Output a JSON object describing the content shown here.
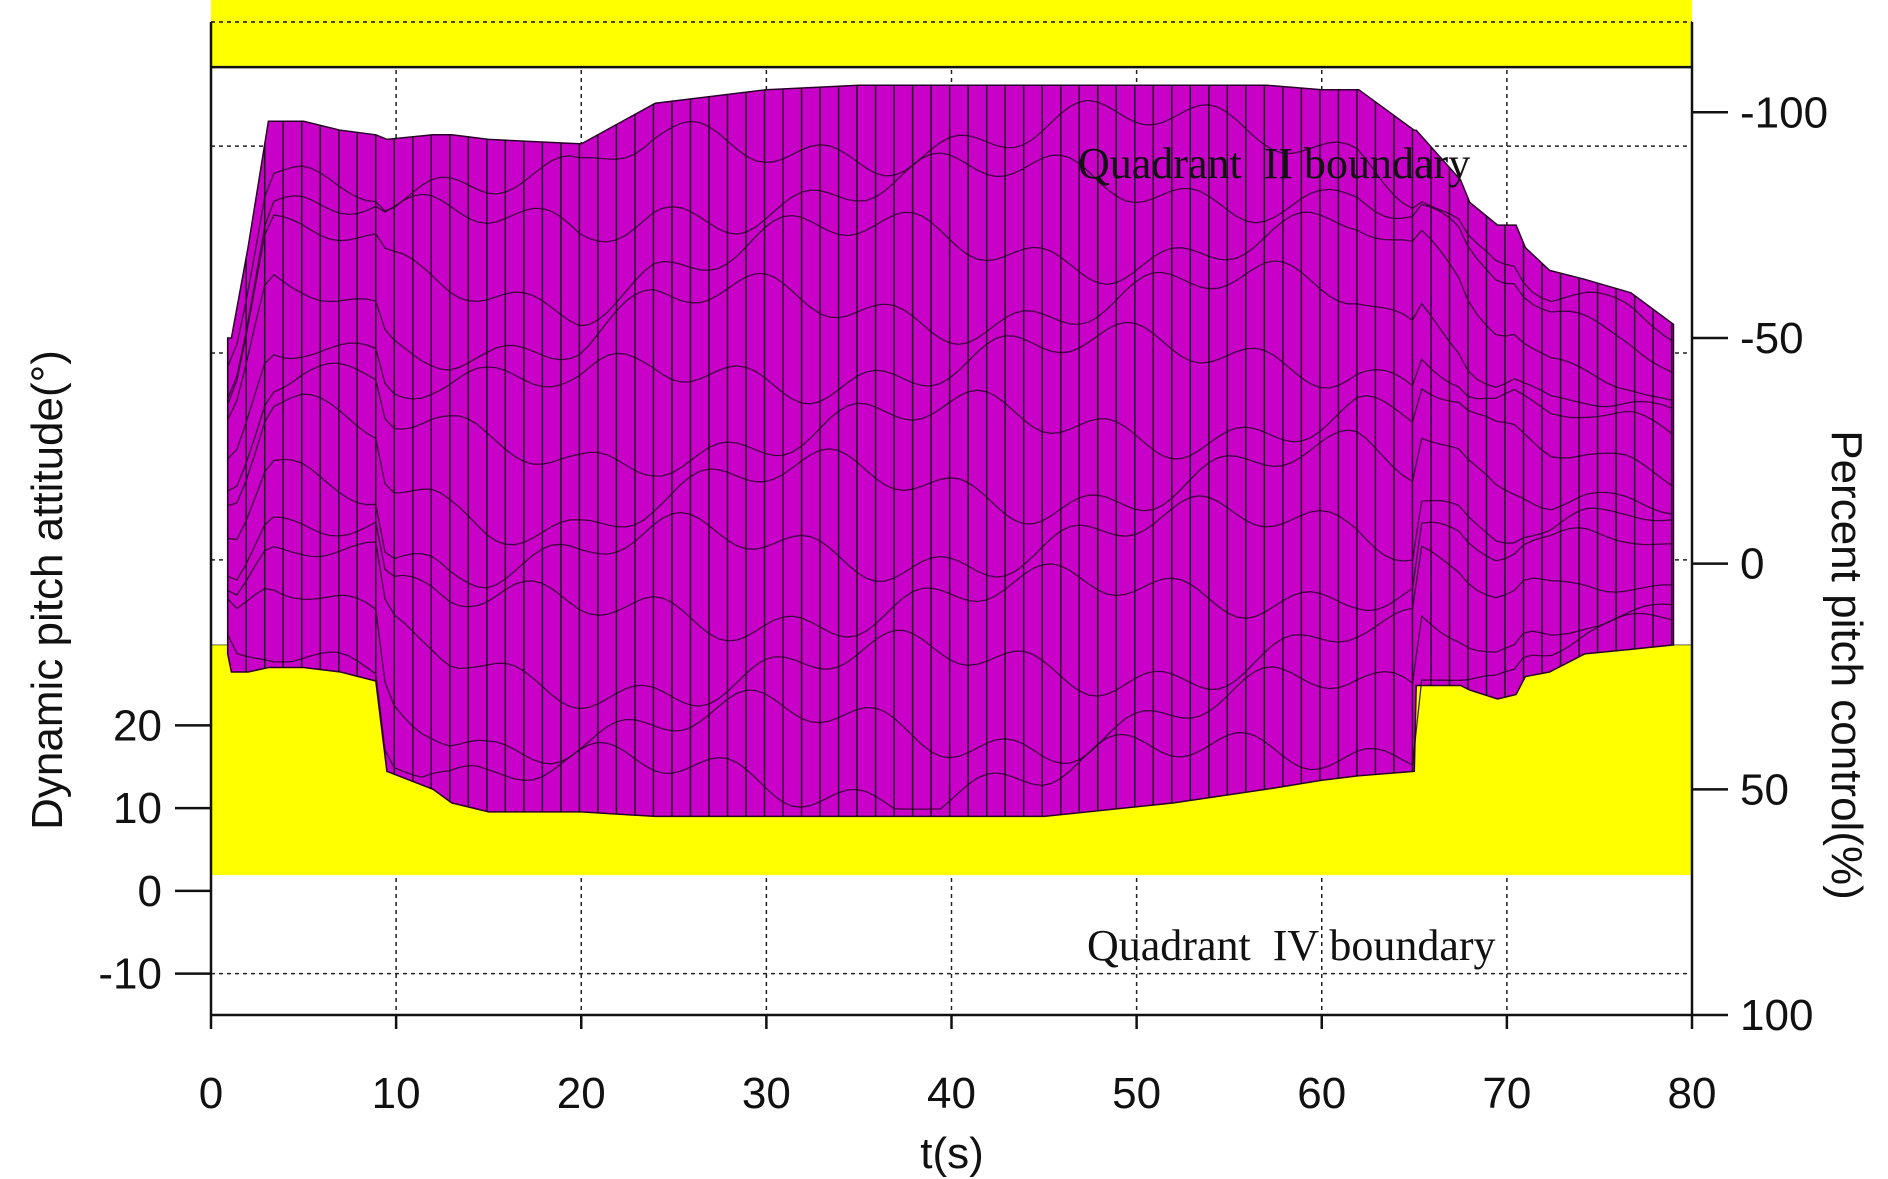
{
  "chart_data": {
    "type": "area",
    "xlabel": "t(s)",
    "ylabel_left": "Dynamic pitch attitude(°)",
    "ylabel_right": "Percent pitch control(%)",
    "xlim": [
      0,
      80
    ],
    "x_ticks": [
      0,
      10,
      20,
      30,
      40,
      50,
      60,
      70,
      80
    ],
    "y_left_ticks": [
      20,
      10,
      0,
      -10
    ],
    "y_left_range": [
      -15,
      105
    ],
    "y_right_ticks": [
      -100,
      -50,
      0,
      50,
      100
    ],
    "y_right_range": [
      -120,
      100
    ],
    "grid": true,
    "annotations": [
      {
        "text": "Quadrant  II boundary"
      },
      {
        "text": "Quadrant  IV boundary"
      }
    ],
    "boundary_bands": [
      {
        "name": "Quadrant II boundary",
        "control_from": -131,
        "control_to": -110
      },
      {
        "name": "Quadrant IV boundary",
        "control_from": 18,
        "control_to": 69
      }
    ],
    "envelope": {
      "t": [
        0.9,
        1.1,
        2.0,
        3.1,
        5.0,
        7.0,
        8.9,
        9.5,
        12.0,
        13.0,
        15.0,
        20.0,
        24.0,
        30.0,
        35.0,
        45.0,
        52.0,
        57.0,
        60.0,
        62.0,
        65.0,
        65.1,
        67.5,
        68.0,
        69.5,
        70.5,
        71.0,
        72.3,
        74.2,
        76.7,
        79.0
      ],
      "control_upper": [
        -50,
        -50,
        -70,
        -98,
        -98,
        -96,
        -95,
        -94,
        -95,
        -95,
        -94,
        -93,
        -102,
        -105,
        -106,
        -106,
        -106,
        -106,
        -105,
        -105,
        -96,
        -96,
        -85,
        -80,
        -75,
        -75,
        -70,
        -65,
        -63,
        -60,
        -53
      ],
      "control_lower": [
        20,
        24,
        24,
        23,
        23,
        24,
        26,
        46,
        50,
        53,
        55,
        55,
        56,
        56,
        56,
        56,
        53,
        50,
        48,
        47,
        46,
        27,
        27,
        28,
        30,
        29,
        25,
        24,
        20,
        19,
        18
      ],
      "segment_width_s": 1
    },
    "colors": {
      "envelope_fill": "#c800c8",
      "boundary_fill": "#ffff00",
      "axes": "#111111",
      "grid": "#222222"
    }
  }
}
